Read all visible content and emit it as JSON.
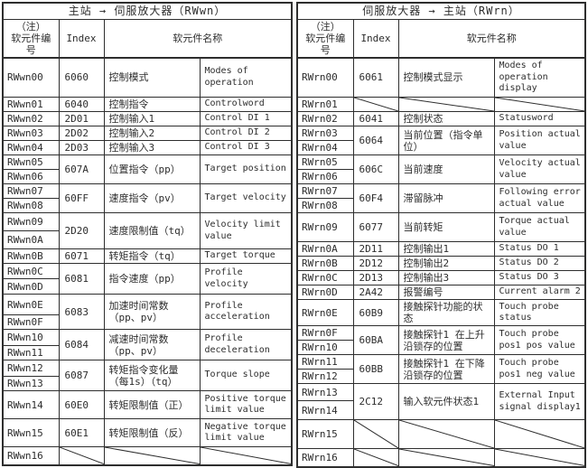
{
  "page": {
    "background": "#ffffff",
    "line_color": "#2e2e2e",
    "text_color": "#2c2c2c"
  },
  "tables": [
    {
      "title": "主站 → 伺服放大器（RWwn）",
      "header": {
        "device": "（注）\n软元件编号",
        "index": "Index",
        "name": "软元件名称"
      },
      "entries": [
        {
          "devices": [
            "RWwn00"
          ],
          "heights": [
            44
          ],
          "index": "6060",
          "cn": "控制模式",
          "en": "Modes of operation"
        },
        {
          "devices": [
            "RWwn01"
          ],
          "heights": [
            16
          ],
          "index": "6040",
          "cn": "控制指令",
          "en": "Controlword"
        },
        {
          "devices": [
            "RWwn02"
          ],
          "heights": [
            16
          ],
          "index": "2D01",
          "cn": "控制输入1",
          "en": "Control DI 1"
        },
        {
          "devices": [
            "RWwn03"
          ],
          "heights": [
            16
          ],
          "index": "2D02",
          "cn": "控制输入2",
          "en": "Control DI 2"
        },
        {
          "devices": [
            "RWwn04"
          ],
          "heights": [
            16
          ],
          "index": "2D03",
          "cn": "控制输入3",
          "en": "Control DI 3"
        },
        {
          "devices": [
            "RWwn05",
            "RWwn06"
          ],
          "heights": [
            16,
            16
          ],
          "index": "607A",
          "cn": "位置指令（pp）",
          "en": "Target position"
        },
        {
          "devices": [
            "RWwn07",
            "RWwn08"
          ],
          "heights": [
            16,
            16
          ],
          "index": "60FF",
          "cn": "速度指令（pv）",
          "en": "Target velocity"
        },
        {
          "devices": [
            "RWwn09",
            "RWwn0A"
          ],
          "heights": [
            20,
            20
          ],
          "index": "2D20",
          "cn": "速度限制值（tq）",
          "en": "Velocity limit value"
        },
        {
          "devices": [
            "RWwn0B"
          ],
          "heights": [
            16
          ],
          "index": "6071",
          "cn": "转矩指令（tq）",
          "en": "Target torque"
        },
        {
          "devices": [
            "RWwn0C",
            "RWwn0D"
          ],
          "heights": [
            17,
            17
          ],
          "index": "6081",
          "cn": "指令速度（pp）",
          "en": "Profile velocity"
        },
        {
          "devices": [
            "RWwn0E",
            "RWwn0F"
          ],
          "heights": [
            23,
            16
          ],
          "index": "6083",
          "cn": "加速时间常数（pp、pv）",
          "en": "Profile acceleration"
        },
        {
          "devices": [
            "RWwn10",
            "RWwn11"
          ],
          "heights": [
            18,
            13
          ],
          "index": "6084",
          "cn": "减速时间常数（pp、pv）",
          "en": "Profile deceleration"
        },
        {
          "devices": [
            "RWwn12",
            "RWwn13"
          ],
          "heights": [
            18,
            10
          ],
          "index": "6087",
          "cn": "转矩指令变化量（每1s）（tq）",
          "en": "Torque slope"
        },
        {
          "devices": [
            "RWwn14"
          ],
          "heights": [
            31
          ],
          "index": "60E0",
          "cn": "转矩限制值（正）",
          "en": "Positive torque limit value"
        },
        {
          "devices": [
            "RWwn15"
          ],
          "heights": [
            31
          ],
          "index": "60E1",
          "cn": "转矩限制值（反）",
          "en": "Negative torque limit value"
        },
        {
          "devices": [
            "RWwn16"
          ],
          "heights": [
            20
          ],
          "diagonal": true
        }
      ]
    },
    {
      "title": "伺服放大器 → 主站（RWrn）",
      "header": {
        "device": "（注）\n软元件编号",
        "index": "Index",
        "name": "软元件名称"
      },
      "entries": [
        {
          "devices": [
            "RWrn00"
          ],
          "heights": [
            44
          ],
          "index": "6061",
          "cn": "控制模式显示",
          "en": "Modes of operation display"
        },
        {
          "devices": [
            "RWrn01"
          ],
          "heights": [
            15
          ],
          "diagonal": true
        },
        {
          "devices": [
            "RWrn02"
          ],
          "heights": [
            16
          ],
          "index": "6041",
          "cn": "控制状态",
          "en": "Statusword"
        },
        {
          "devices": [
            "RWrn03",
            "RWrn04"
          ],
          "heights": [
            14,
            14
          ],
          "index": "6064",
          "cn": "当前位置（指令单位）",
          "en": "Position actual value"
        },
        {
          "devices": [
            "RWrn05",
            "RWrn06"
          ],
          "heights": [
            14,
            14
          ],
          "index": "606C",
          "cn": "当前速度",
          "en": "Velocity actual value"
        },
        {
          "devices": [
            "RWrn07",
            "RWrn08"
          ],
          "heights": [
            14,
            14
          ],
          "index": "60F4",
          "cn": "滞留脉冲",
          "en": "Following error actual value"
        },
        {
          "devices": [
            "RWrn09"
          ],
          "heights": [
            32
          ],
          "index": "6077",
          "cn": "当前转矩",
          "en": "Torque actual value"
        },
        {
          "devices": [
            "RWrn0A"
          ],
          "heights": [
            16
          ],
          "index": "2D11",
          "cn": "控制输出1",
          "en": "Status DO 1"
        },
        {
          "devices": [
            "RWrn0B"
          ],
          "heights": [
            16
          ],
          "index": "2D12",
          "cn": "控制输出2",
          "en": "Status DO 2"
        },
        {
          "devices": [
            "RWrn0C"
          ],
          "heights": [
            16
          ],
          "index": "2D13",
          "cn": "控制输出3",
          "en": "Status DO 3"
        },
        {
          "devices": [
            "RWrn0D"
          ],
          "heights": [
            16
          ],
          "index": "2A42",
          "cn": "报警编号",
          "en": "Current alarm 2"
        },
        {
          "devices": [
            "RWrn0E"
          ],
          "heights": [
            29
          ],
          "index": "60B9",
          "cn": "接触探针功能的状态",
          "en": "Touch probe status"
        },
        {
          "devices": [
            "RWrn0F",
            "RWrn10"
          ],
          "heights": [
            14,
            13
          ],
          "index": "60BA",
          "cn": "接触探针1 在上升沿锁存的位置",
          "en": "Touch probe pos1 pos value"
        },
        {
          "devices": [
            "RWrn11",
            "RWrn12"
          ],
          "heights": [
            16,
            16
          ],
          "index": "60BB",
          "cn": "接触探针1 在下降沿锁存的位置",
          "en": "Touch probe pos1 neg value"
        },
        {
          "devices": [
            "RWrn13",
            "RWrn14"
          ],
          "heights": [
            19,
            21
          ],
          "index": "2C12",
          "cn": "输入软元件状态1",
          "en": "External Input signal display1"
        },
        {
          "devices": [
            "RWrn15"
          ],
          "heights": [
            32
          ],
          "diagonal": true
        },
        {
          "devices": [
            "RWrn16"
          ],
          "heights": [
            20
          ],
          "diagonal": true
        }
      ]
    }
  ]
}
